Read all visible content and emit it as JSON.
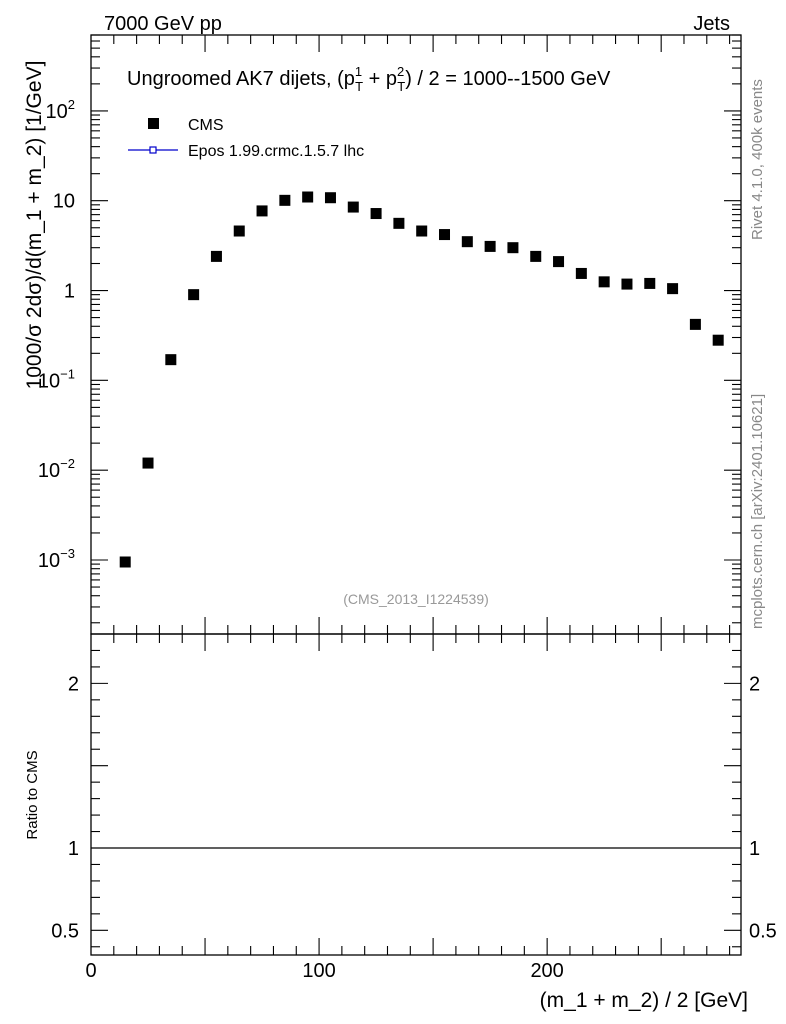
{
  "header": {
    "energy_label": "7000 GeV pp",
    "process_label": "Jets"
  },
  "side": {
    "rivet_label": "Rivet 4.1.0,  400k events",
    "source_label": "mcplots.cern.ch [arXiv:2401.10621]"
  },
  "chart_data": {
    "type": "scatter",
    "title": "Ungroomed AK7 dijets, (p_T^1 + p_T^2) / 2 = 1000--1500 GeV",
    "title_parts": {
      "prefix": "Ungroomed AK7 dijets, (p",
      "sup1": "1",
      "sub": "T",
      "mid": " + p",
      "sup2": "2",
      "suffix": ") / 2 = 1000--1500 GeV"
    },
    "analysis_id": "(CMS_2013_I1224539)",
    "xlabel": "(m_1 + m_2) / 2 [GeV]",
    "ylabel": "1000/σ   2dσ)/d(m_1 + m_2) [1/GeV]",
    "ratio_ylabel": "Ratio to CMS",
    "xlim": [
      0,
      285
    ],
    "ylim": [
      0.00015,
      700
    ],
    "ratio_ylim": [
      0.35,
      2.3
    ],
    "yscale": "log",
    "legend_position": "top-left",
    "legend": [
      {
        "name": "CMS",
        "marker": "square",
        "color": "#000000"
      },
      {
        "name": "Epos 1.99.crmc.1.5.7 lhc",
        "marker": "open-square-line",
        "color": "#0000cc"
      }
    ],
    "x_ticks": [
      0,
      100,
      200
    ],
    "x_tick_labels": [
      "0",
      "100",
      "200"
    ],
    "y_ticks": [
      {
        "value": 100,
        "mantissa": "10",
        "exp": "2"
      },
      {
        "value": 10,
        "mantissa": "10",
        "exp": ""
      },
      {
        "value": 1,
        "mantissa": "1",
        "exp": ""
      },
      {
        "value": 0.1,
        "mantissa": "10",
        "exp": "−1"
      },
      {
        "value": 0.01,
        "mantissa": "10",
        "exp": "−2"
      },
      {
        "value": 0.001,
        "mantissa": "10",
        "exp": "−3"
      }
    ],
    "ratio_ticks": [
      {
        "value": 2,
        "label": "2"
      },
      {
        "value": 1,
        "label": "1"
      },
      {
        "value": 0.5,
        "label": "0.5"
      }
    ],
    "series": [
      {
        "name": "CMS",
        "x": [
          15,
          25,
          35,
          45,
          55,
          65,
          75,
          85,
          95,
          105,
          115,
          125,
          135,
          145,
          155,
          165,
          175,
          185,
          195,
          205,
          215,
          225,
          235,
          245,
          255,
          265,
          275
        ],
        "y": [
          0.00095,
          0.012,
          0.17,
          0.9,
          2.4,
          4.6,
          7.7,
          10.1,
          11.0,
          10.8,
          8.5,
          7.2,
          5.6,
          4.6,
          4.2,
          3.5,
          3.1,
          3.0,
          2.4,
          2.1,
          1.55,
          1.25,
          1.18,
          1.2,
          1.05,
          0.42,
          0.28
        ]
      }
    ]
  }
}
